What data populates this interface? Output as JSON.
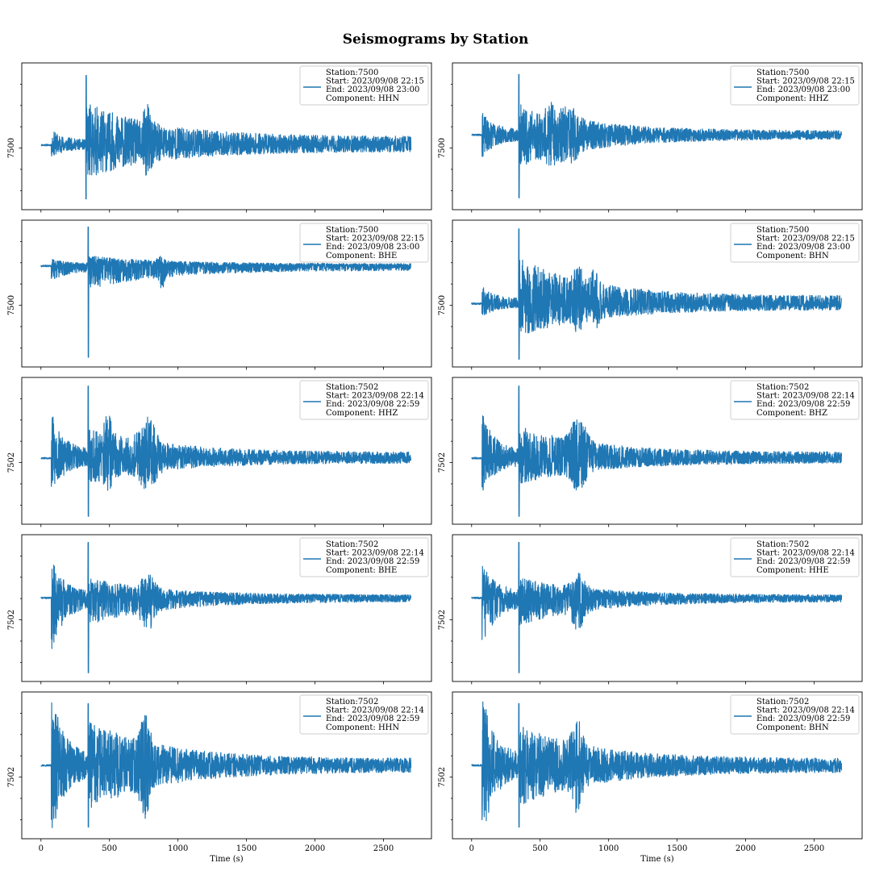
{
  "chart_data": {
    "type": "line",
    "title": "Seismograms by Station",
    "xlabel": "Time (s)",
    "xlim": [
      -140,
      2850
    ],
    "xticks": [
      0,
      500,
      1000,
      1500,
      2000,
      2500
    ],
    "color": "#1f77b4",
    "grid": false,
    "legend_position": "upper right",
    "layout": {
      "rows": 5,
      "cols": 2
    },
    "duration_s": 2700,
    "panels": [
      {
        "station": "7500",
        "ylabel": "7500",
        "ytick_label": "7500",
        "legend": [
          "Station:7500",
          "Start: 2023/09/08 22:15",
          "End: 2023/09/08 23:00",
          "Component: HHN"
        ]
      },
      {
        "station": "7500",
        "ylabel": "7500",
        "ytick_label": "7500",
        "legend": [
          "Station:7500",
          "Start: 2023/09/08 22:15",
          "End: 2023/09/08 23:00",
          "Component: HHZ"
        ]
      },
      {
        "station": "7500",
        "ylabel": "7500",
        "ytick_label": "7500",
        "legend": [
          "Station:7500",
          "Start: 2023/09/08 22:15",
          "End: 2023/09/08 23:00",
          "Component: BHE"
        ]
      },
      {
        "station": "7500",
        "ylabel": "7500",
        "ytick_label": "7500",
        "legend": [
          "Station:7500",
          "Start: 2023/09/08 22:15",
          "End: 2023/09/08 23:00",
          "Component: BHN"
        ]
      },
      {
        "station": "7502",
        "ylabel": "7502",
        "ytick_label": "7502",
        "legend": [
          "Station:7502",
          "Start: 2023/09/08 22:14",
          "End: 2023/09/08 22:59",
          "Component: HHZ"
        ]
      },
      {
        "station": "7502",
        "ylabel": "7502",
        "ytick_label": "7502",
        "legend": [
          "Station:7502",
          "Start: 2023/09/08 22:14",
          "End: 2023/09/08 22:59",
          "Component: BHZ"
        ]
      },
      {
        "station": "7502",
        "ylabel": "7502",
        "ytick_label": "7502",
        "legend": [
          "Station:7502",
          "Start: 2023/09/08 22:14",
          "End: 2023/09/08 22:59",
          "Component: BHE"
        ]
      },
      {
        "station": "7502",
        "ylabel": "7502",
        "ytick_label": "7502",
        "legend": [
          "Station:7502",
          "Start: 2023/09/08 22:14",
          "End: 2023/09/08 22:59",
          "Component: HHE"
        ]
      },
      {
        "station": "7502",
        "ylabel": "7502",
        "ytick_label": "7502",
        "legend": [
          "Station:7502",
          "Start: 2023/09/08 22:14",
          "End: 2023/09/08 22:59",
          "Component: HHN"
        ]
      },
      {
        "station": "7502",
        "ylabel": "7502",
        "ytick_label": "7502",
        "legend": [
          "Station:7502",
          "Start: 2023/09/08 22:14",
          "End: 2023/09/08 22:59",
          "Component: BHN"
        ]
      }
    ]
  }
}
